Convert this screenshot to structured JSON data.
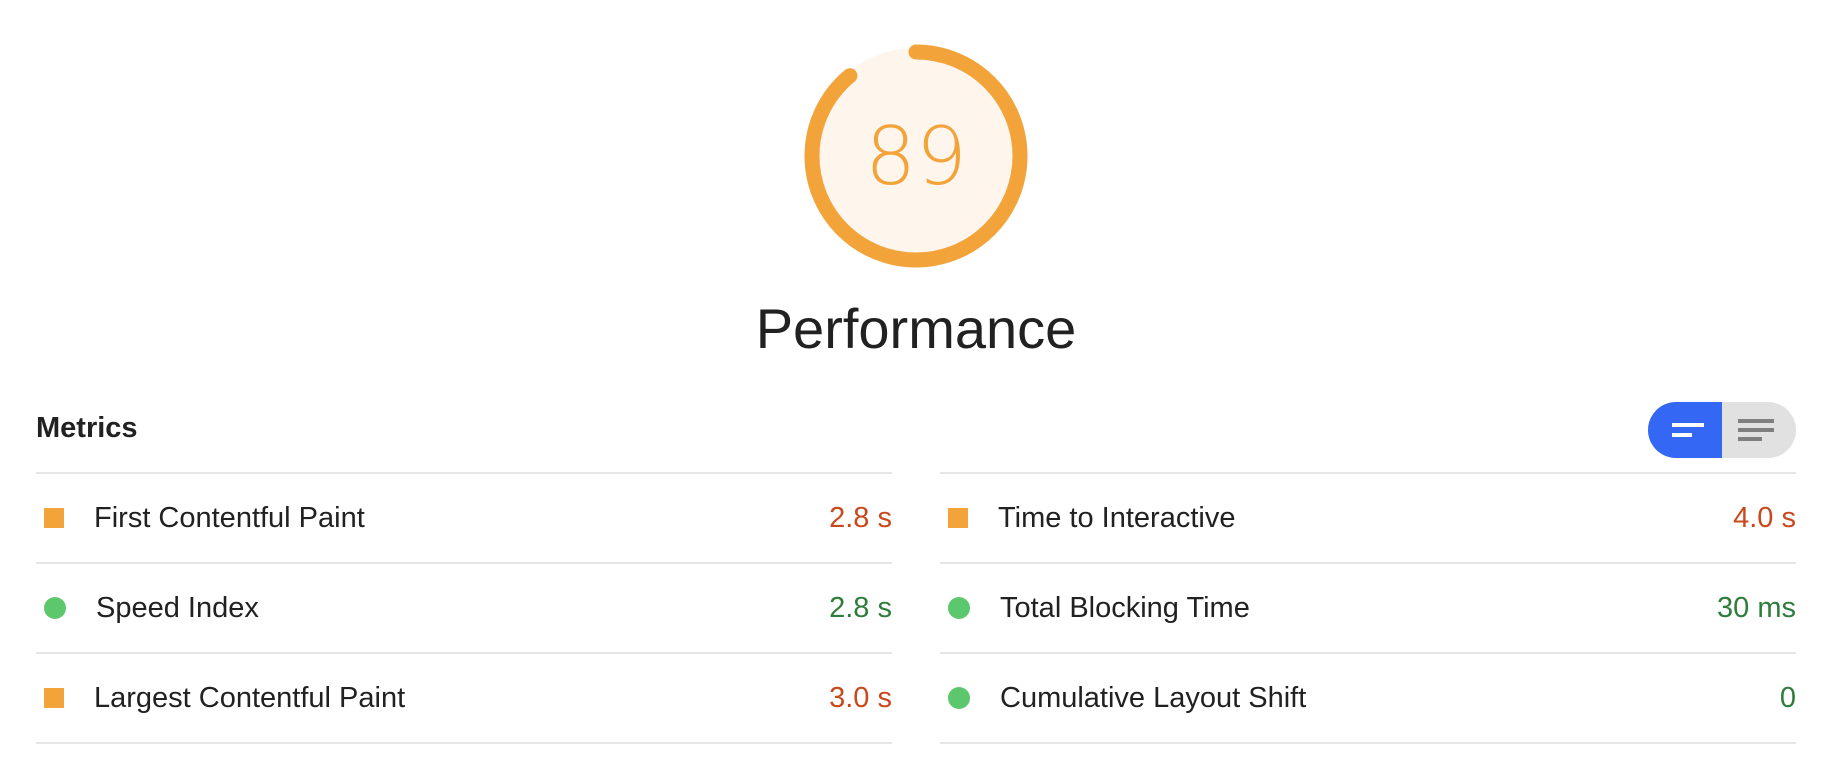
{
  "gauge": {
    "score": "89",
    "fraction": 0.89,
    "arc_color": "#f2a33a",
    "bg_color": "#fef5ec"
  },
  "category_title": "Performance",
  "metrics": {
    "heading": "Metrics",
    "toggle": {
      "active": "compact-view",
      "options": [
        "compact-view-icon",
        "expanded-view-icon"
      ],
      "active_color": "#3367f4"
    },
    "left": [
      {
        "label": "First Contentful Paint",
        "value": "2.8 s",
        "status": "average"
      },
      {
        "label": "Speed Index",
        "value": "2.8 s",
        "status": "pass"
      },
      {
        "label": "Largest Contentful Paint",
        "value": "3.0 s",
        "status": "average"
      }
    ],
    "right": [
      {
        "label": "Time to Interactive",
        "value": "4.0 s",
        "status": "average"
      },
      {
        "label": "Total Blocking Time",
        "value": "30 ms",
        "status": "pass"
      },
      {
        "label": "Cumulative Layout Shift",
        "value": "0",
        "status": "pass"
      }
    ]
  },
  "colors": {
    "average_text": "#c8491c",
    "pass_text": "#2e7d3a",
    "average_icon": "#f2a33a",
    "pass_icon": "#5dc76e"
  }
}
